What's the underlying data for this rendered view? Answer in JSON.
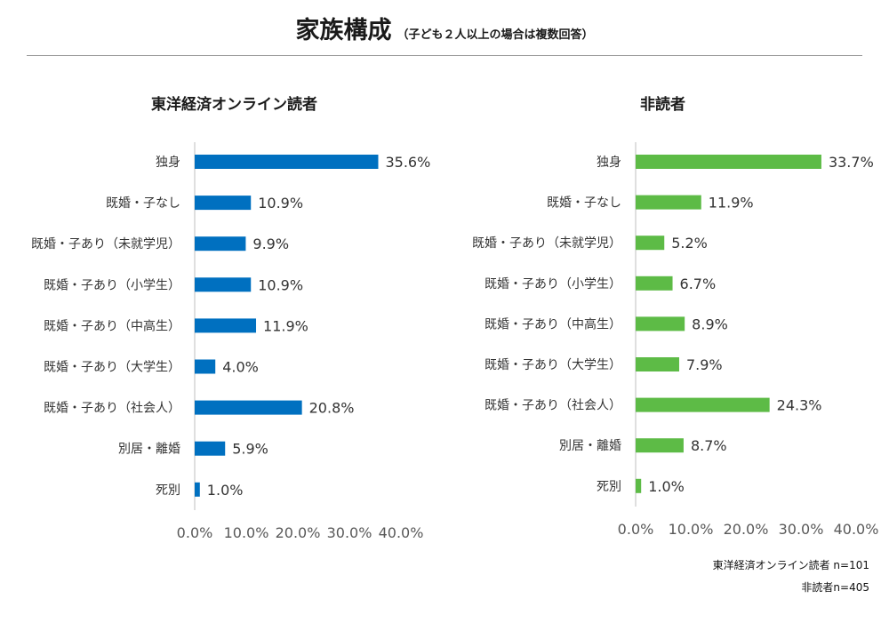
{
  "title": "家族構成",
  "subtitle": "（子ども２人以上の場合は複数回答）",
  "notes": [
    "東洋経済オンライン読者 n=101",
    "非読者n=405"
  ],
  "chart_data": [
    {
      "type": "bar",
      "orientation": "horizontal",
      "title": "東洋経済オンライン読者",
      "categories": [
        "独身",
        "既婚・子なし",
        "既婚・子あり（未就学児）",
        "既婚・子あり（小学生）",
        "既婚・子あり（中高生）",
        "既婚・子あり（大学生）",
        "既婚・子あり（社会人）",
        "別居・離婚",
        "死別"
      ],
      "values": [
        35.6,
        10.9,
        9.9,
        10.9,
        11.9,
        4.0,
        20.8,
        5.9,
        1.0
      ],
      "value_labels": [
        "35.6%",
        "10.9%",
        "9.9%",
        "10.9%",
        "11.9%",
        "4.0%",
        "20.8%",
        "5.9%",
        "1.0%"
      ],
      "xlim": [
        0,
        40
      ],
      "xticks": [
        "0.0%",
        "10.0%",
        "20.0%",
        "30.0%",
        "40.0%"
      ],
      "color": "#0070C0",
      "grid": false
    },
    {
      "type": "bar",
      "orientation": "horizontal",
      "title": "非読者",
      "categories": [
        "独身",
        "既婚・子なし",
        "既婚・子あり（未就学児）",
        "既婚・子あり（小学生）",
        "既婚・子あり（中高生）",
        "既婚・子あり（大学生）",
        "既婚・子あり（社会人）",
        "別居・離婚",
        "死別"
      ],
      "values": [
        33.7,
        11.9,
        5.2,
        6.7,
        8.9,
        7.9,
        24.3,
        8.7,
        1.0
      ],
      "value_labels": [
        "33.7%",
        "11.9%",
        "5.2%",
        "6.7%",
        "8.9%",
        "7.9%",
        "24.3%",
        "8.7%",
        "1.0%"
      ],
      "xlim": [
        0,
        40
      ],
      "xticks": [
        "0.0%",
        "10.0%",
        "20.0%",
        "30.0%",
        "40.0%"
      ],
      "color": "#5DBB46",
      "grid": false
    }
  ]
}
